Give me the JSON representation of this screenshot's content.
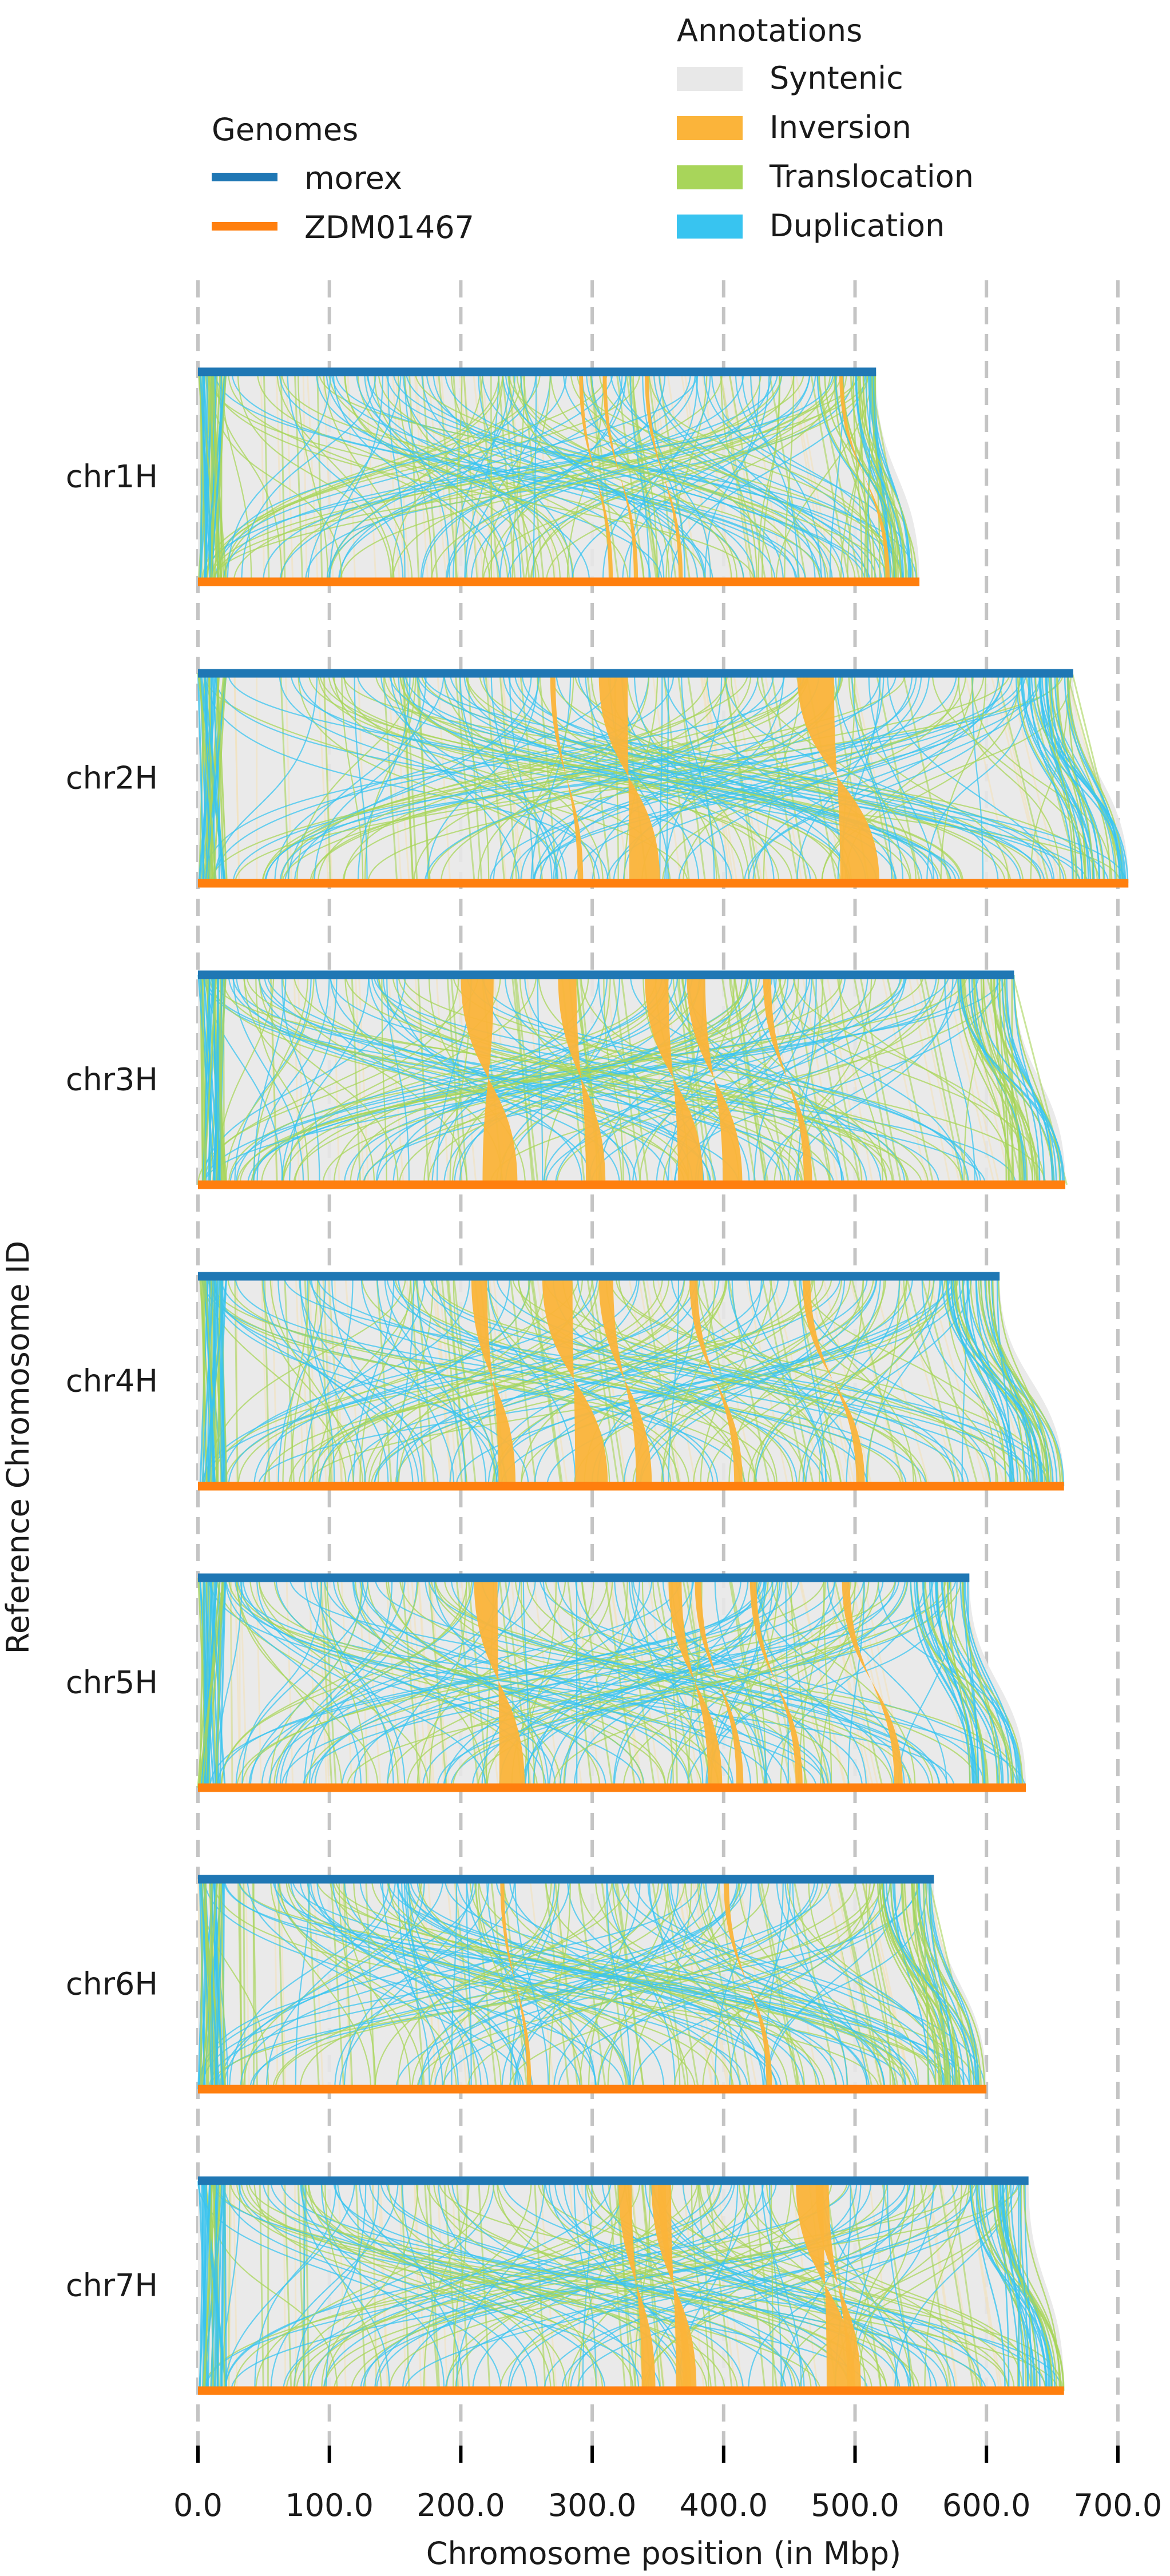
{
  "chart_data": {
    "type": "synteny",
    "xlabel": "Chromosome position (in Mbp)",
    "ylabel": "Reference Chromosome ID",
    "xlim": [
      0,
      735
    ],
    "x_ticks": [
      0,
      100,
      200,
      300,
      400,
      500,
      600,
      700
    ],
    "x_tick_labels": [
      "0.0",
      "100.0",
      "200.0",
      "300.0",
      "400.0",
      "500.0",
      "600.0",
      "700.0"
    ],
    "grid": "vertical dashed",
    "legends": {
      "genomes": {
        "title": "Genomes",
        "placement": "top-left",
        "items": [
          {
            "label": "morex",
            "color": "#1f77b4"
          },
          {
            "label": "ZDM01467",
            "color": "#ff7f0e"
          }
        ]
      },
      "annotations": {
        "title": "Annotations",
        "placement": "top-right",
        "items": [
          {
            "label": "Syntenic",
            "color": "#e8e8e8"
          },
          {
            "label": "Inversion",
            "color": "#fbb43a"
          },
          {
            "label": "Translocation",
            "color": "#a8d55a"
          },
          {
            "label": "Duplication",
            "color": "#38c4f0"
          }
        ]
      }
    },
    "chromosomes": [
      {
        "id": "chr1H",
        "reference_length": 516,
        "query_length": 549,
        "inversions": [
          [
            290,
            293
          ],
          [
            308,
            311
          ],
          [
            340,
            343
          ],
          [
            488,
            491
          ]
        ]
      },
      {
        "id": "chr2H",
        "reference_length": 666,
        "query_length": 708,
        "inversions": [
          [
            268,
            272
          ],
          [
            305,
            327
          ],
          [
            456,
            484
          ]
        ]
      },
      {
        "id": "chr3H",
        "reference_length": 621,
        "query_length": 660,
        "inversions": [
          [
            200,
            225
          ],
          [
            274,
            288
          ],
          [
            340,
            358
          ],
          [
            372,
            386
          ],
          [
            430,
            436
          ]
        ]
      },
      {
        "id": "chr4H",
        "reference_length": 610,
        "query_length": 659,
        "inversions": [
          [
            208,
            220
          ],
          [
            262,
            285
          ],
          [
            305,
            316
          ],
          [
            374,
            380
          ],
          [
            460,
            466
          ]
        ]
      },
      {
        "id": "chr5H",
        "reference_length": 587,
        "query_length": 630,
        "inversions": [
          [
            210,
            228
          ],
          [
            358,
            368
          ],
          [
            378,
            383
          ],
          [
            420,
            425
          ],
          [
            490,
            496
          ]
        ]
      },
      {
        "id": "chr6H",
        "reference_length": 560,
        "query_length": 600,
        "inversions": [
          [
            230,
            233
          ],
          [
            400,
            404
          ]
        ]
      },
      {
        "id": "chr7H",
        "reference_length": 632,
        "query_length": 659,
        "inversions": [
          [
            320,
            330
          ],
          [
            345,
            360
          ],
          [
            350,
            356
          ],
          [
            455,
            476
          ],
          [
            470,
            480
          ]
        ]
      }
    ]
  }
}
